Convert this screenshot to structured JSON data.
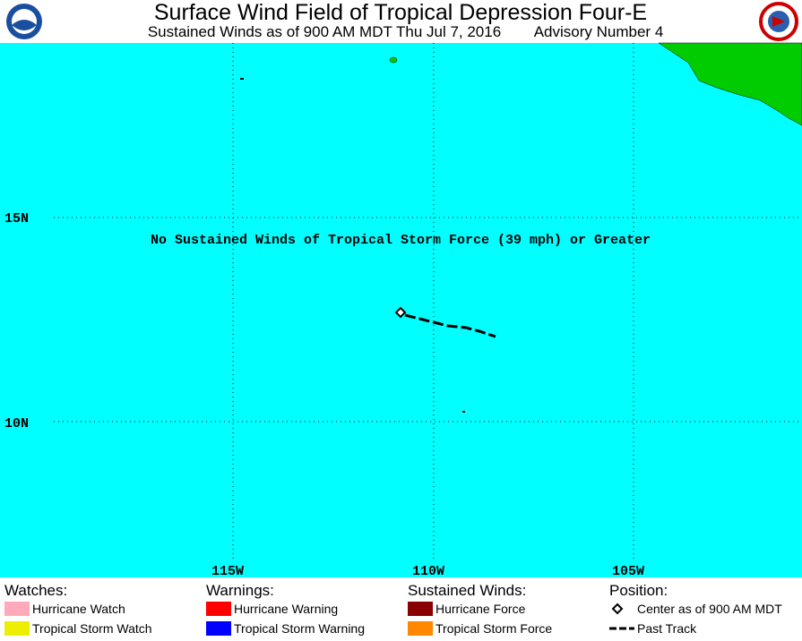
{
  "header": {
    "title": "Surface Wind Field of Tropical Depression Four-E",
    "subtitle": "Sustained Winds as of 900 AM MDT Thu Jul 7, 2016",
    "advisory": "Advisory Number 4"
  },
  "map": {
    "lat_labels": [
      "15N",
      "10N"
    ],
    "lon_labels": [
      "115W",
      "110W",
      "105W"
    ],
    "annotation": "No Sustained Winds of Tropical Storm Force (39 mph) or Greater"
  },
  "legend": {
    "groups": [
      {
        "heading": "Watches:",
        "items": [
          {
            "label": "Hurricane Watch",
            "color": "#ffaabb"
          },
          {
            "label": "Tropical Storm Watch",
            "color": "#eeee00"
          }
        ]
      },
      {
        "heading": "Warnings:",
        "items": [
          {
            "label": "Hurricane Warning",
            "color": "#ff0000"
          },
          {
            "label": "Tropical Storm Warning",
            "color": "#0000ff"
          }
        ]
      },
      {
        "heading": "Sustained Winds:",
        "items": [
          {
            "label": "Hurricane Force",
            "color": "#880000"
          },
          {
            "label": "Tropical Storm Force",
            "color": "#ff8800"
          }
        ]
      },
      {
        "heading": "Position:",
        "items": [
          {
            "label": "Center as of 900 AM MDT"
          },
          {
            "label": "Past Track"
          }
        ]
      }
    ]
  }
}
